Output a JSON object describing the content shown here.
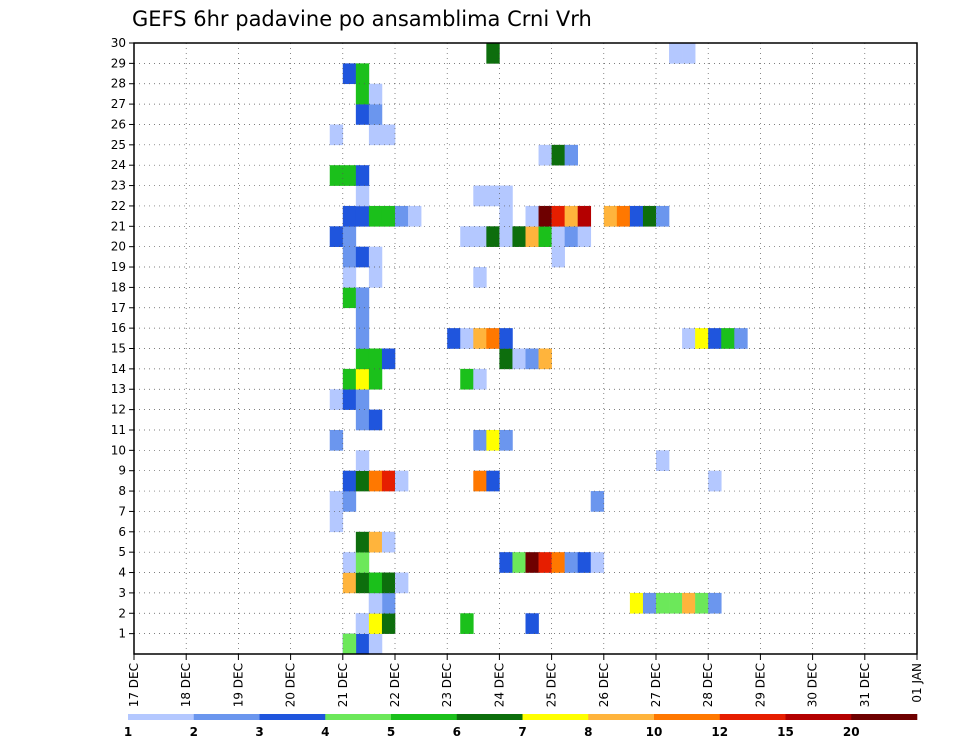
{
  "chart_data": {
    "type": "heatmap",
    "title": "GEFS 6hr padavine po ansamblima Crni Vrh",
    "xlabel": "",
    "ylabel": "",
    "x_tick_labels": [
      "17 DEC",
      "18 DEC",
      "19 DEC",
      "20 DEC",
      "21 DEC",
      "22 DEC",
      "23 DEC",
      "24 DEC",
      "25 DEC",
      "26 DEC",
      "27 DEC",
      "28 DEC",
      "29 DEC",
      "30 DEC",
      "31 DEC",
      "01 JAN"
    ],
    "y_tick_labels": [
      "1",
      "2",
      "3",
      "4",
      "5",
      "6",
      "7",
      "8",
      "9",
      "10",
      "11",
      "12",
      "13",
      "14",
      "15",
      "16",
      "17",
      "18",
      "19",
      "20",
      "21",
      "22",
      "23",
      "24",
      "25",
      "26",
      "27",
      "28",
      "29",
      "30"
    ],
    "x_unit": "6-hour steps from 17 DEC 00Z",
    "ylim": [
      0,
      30
    ],
    "grid": true,
    "colorbar": {
      "labels": [
        "1",
        "2",
        "3",
        "4",
        "5",
        "6",
        "7",
        "8",
        "10",
        "12",
        "15",
        "20"
      ],
      "colors": [
        "#b4c8ff",
        "#6b96ee",
        "#1f55dd",
        "#6ce85a",
        "#1bc01b",
        "#0d6e0d",
        "#ffff00",
        "#ffb43c",
        "#ff7800",
        "#e61e00",
        "#b40000",
        "#6e0000"
      ]
    },
    "cells": [
      [
        16,
        0,
        2
      ],
      [
        17,
        0,
        2
      ],
      [
        17,
        1,
        0
      ],
      [
        16,
        0,
        3
      ],
      [
        18,
        0,
        0
      ],
      [
        17,
        1,
        0
      ],
      [
        18,
        1,
        6
      ],
      [
        19,
        1,
        5
      ],
      [
        25,
        1,
        4
      ],
      [
        30,
        1,
        2
      ],
      [
        18,
        2,
        1
      ],
      [
        19,
        2,
        1
      ],
      [
        18,
        2,
        0
      ],
      [
        38,
        2,
        6
      ],
      [
        39,
        2,
        1
      ],
      [
        40,
        2,
        3
      ],
      [
        41,
        2,
        3
      ],
      [
        42,
        2,
        7
      ],
      [
        43,
        2,
        3
      ],
      [
        44,
        2,
        1
      ],
      [
        16,
        3,
        7
      ],
      [
        17,
        3,
        5
      ],
      [
        18,
        3,
        4
      ],
      [
        19,
        3,
        5
      ],
      [
        20,
        3,
        0
      ],
      [
        16,
        4,
        0
      ],
      [
        17,
        4,
        3
      ],
      [
        28,
        4,
        2
      ],
      [
        29,
        4,
        3
      ],
      [
        30,
        4,
        11
      ],
      [
        31,
        4,
        9
      ],
      [
        32,
        4,
        8
      ],
      [
        33,
        4,
        1
      ],
      [
        34,
        4,
        2
      ],
      [
        35,
        4,
        0
      ],
      [
        17,
        5,
        5
      ],
      [
        18,
        5,
        7
      ],
      [
        19,
        5,
        0
      ],
      [
        15,
        6,
        0
      ],
      [
        15,
        7,
        0
      ],
      [
        16,
        7,
        1
      ],
      [
        35,
        7,
        1
      ],
      [
        16,
        8,
        2
      ],
      [
        17,
        8,
        5
      ],
      [
        18,
        8,
        8
      ],
      [
        19,
        8,
        9
      ],
      [
        20,
        8,
        0
      ],
      [
        26,
        8,
        8
      ],
      [
        27,
        8,
        2
      ],
      [
        44,
        8,
        0
      ],
      [
        17,
        9,
        0
      ],
      [
        40,
        9,
        0
      ],
      [
        15,
        10,
        1
      ],
      [
        26,
        10,
        1
      ],
      [
        27,
        10,
        6
      ],
      [
        28,
        10,
        1
      ],
      [
        17,
        11,
        1
      ],
      [
        18,
        11,
        2
      ],
      [
        15,
        12,
        0
      ],
      [
        16,
        12,
        2
      ],
      [
        17,
        12,
        1
      ],
      [
        16,
        13,
        4
      ],
      [
        17,
        13,
        6
      ],
      [
        18,
        13,
        4
      ],
      [
        25,
        13,
        4
      ],
      [
        26,
        13,
        0
      ],
      [
        17,
        14,
        4
      ],
      [
        18,
        14,
        4
      ],
      [
        19,
        14,
        2
      ],
      [
        28,
        14,
        5
      ],
      [
        29,
        14,
        0
      ],
      [
        30,
        14,
        1
      ],
      [
        31,
        14,
        7
      ],
      [
        17,
        15,
        1
      ],
      [
        24,
        15,
        2
      ],
      [
        25,
        15,
        0
      ],
      [
        26,
        15,
        7
      ],
      [
        27,
        15,
        8
      ],
      [
        28,
        15,
        2
      ],
      [
        42,
        15,
        0
      ],
      [
        43,
        15,
        6
      ],
      [
        44,
        15,
        2
      ],
      [
        45,
        15,
        4
      ],
      [
        46,
        15,
        1
      ],
      [
        17,
        16,
        1
      ],
      [
        16,
        17,
        4
      ],
      [
        17,
        17,
        1
      ],
      [
        16,
        18,
        0
      ],
      [
        18,
        18,
        0
      ],
      [
        26,
        18,
        0
      ],
      [
        16,
        19,
        1
      ],
      [
        17,
        19,
        2
      ],
      [
        18,
        19,
        0
      ],
      [
        32,
        19,
        0
      ],
      [
        15,
        20,
        2
      ],
      [
        16,
        20,
        1
      ],
      [
        25,
        20,
        0
      ],
      [
        26,
        20,
        0
      ],
      [
        27,
        20,
        5
      ],
      [
        28,
        20,
        0
      ],
      [
        29,
        20,
        5
      ],
      [
        30,
        20,
        7
      ],
      [
        31,
        20,
        4
      ],
      [
        32,
        20,
        0
      ],
      [
        33,
        20,
        1
      ],
      [
        34,
        20,
        0
      ],
      [
        16,
        21,
        2
      ],
      [
        17,
        21,
        2
      ],
      [
        18,
        21,
        4
      ],
      [
        19,
        21,
        4
      ],
      [
        20,
        21,
        1
      ],
      [
        21,
        21,
        0
      ],
      [
        28,
        21,
        0
      ],
      [
        30,
        21,
        0
      ],
      [
        31,
        21,
        11
      ],
      [
        32,
        21,
        9
      ],
      [
        33,
        21,
        7
      ],
      [
        34,
        21,
        10
      ],
      [
        36,
        21,
        7
      ],
      [
        37,
        21,
        8
      ],
      [
        38,
        21,
        2
      ],
      [
        39,
        21,
        5
      ],
      [
        40,
        21,
        1
      ],
      [
        17,
        22,
        0
      ],
      [
        26,
        22,
        0
      ],
      [
        27,
        22,
        0
      ],
      [
        28,
        22,
        0
      ],
      [
        15,
        23,
        4
      ],
      [
        16,
        23,
        4
      ],
      [
        17,
        23,
        2
      ],
      [
        31,
        24,
        0
      ],
      [
        32,
        24,
        5
      ],
      [
        33,
        24,
        1
      ],
      [
        15,
        25,
        0
      ],
      [
        18,
        25,
        0
      ],
      [
        19,
        25,
        0
      ],
      [
        17,
        26,
        2
      ],
      [
        18,
        26,
        1
      ],
      [
        17,
        27,
        4
      ],
      [
        18,
        27,
        0
      ],
      [
        16,
        28,
        2
      ],
      [
        17,
        28,
        4
      ],
      [
        27,
        29,
        5
      ],
      [
        41,
        29,
        0
      ],
      [
        42,
        29,
        0
      ]
    ]
  }
}
